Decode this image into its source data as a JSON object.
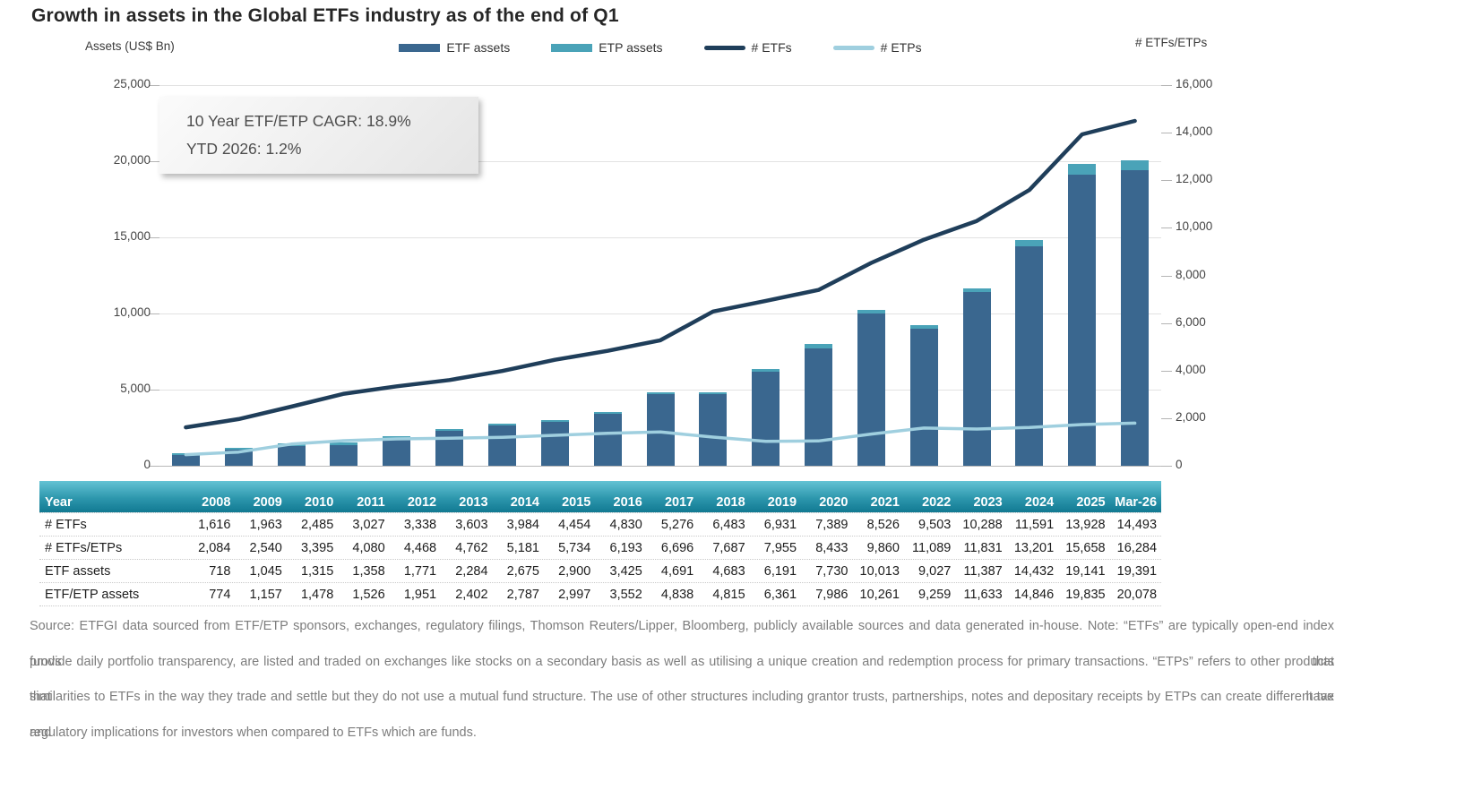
{
  "page": {
    "title": "Growth in assets in the Global ETFs industry as of the end of Q1"
  },
  "chart": {
    "left_axis_label": "Assets (US$ Bn)",
    "right_axis_label": "# ETFs/ETPs",
    "annotation": {
      "line1": "10 Year ETF/ETP CAGR: 18.9%",
      "line2": "YTD 2026: 1.2%"
    },
    "legend": [
      {
        "label": "ETF assets",
        "type": "bar",
        "color": "#3a678f"
      },
      {
        "label": "ETP assets",
        "type": "bar",
        "color": "#4aa3b8"
      },
      {
        "label": "# ETFs",
        "type": "line",
        "color": "#1f3e5a"
      },
      {
        "label": "# ETPs",
        "type": "line",
        "color": "#9fcfdf"
      }
    ],
    "left_ticks": [
      "25,000",
      "20,000",
      "15,000",
      "10,000",
      "5,000",
      "0"
    ],
    "right_ticks": [
      "16,000",
      "14,000",
      "12,000",
      "10,000",
      "8,000",
      "6,000",
      "4,000",
      "2,000",
      "0"
    ]
  },
  "chart_data": {
    "type": "combo_stacked_bar_line",
    "title": "Growth in assets in the Global ETFs industry as of the end of Q1",
    "categories": [
      "2008",
      "2009",
      "2010",
      "2011",
      "2012",
      "2013",
      "2014",
      "2015",
      "2016",
      "2017",
      "2018",
      "2019",
      "2020",
      "2021",
      "2022",
      "2023",
      "2024",
      "2025",
      "Mar-26"
    ],
    "series": [
      {
        "name": "ETF assets",
        "type": "bar",
        "stack": "assets",
        "axis": "left",
        "color": "#3a678f",
        "values": [
          718,
          1045,
          1315,
          1358,
          1771,
          2284,
          2675,
          2900,
          3425,
          4691,
          4683,
          6191,
          7730,
          10013,
          9027,
          11387,
          14432,
          19141,
          19391
        ]
      },
      {
        "name": "ETP assets",
        "type": "bar",
        "stack": "assets",
        "axis": "left",
        "color": "#4aa3b8",
        "note": "stacked segment = ETF/ETP assets minus ETF assets; stack total equals ETF/ETP assets row",
        "values": [
          56,
          112,
          163,
          168,
          180,
          118,
          112,
          97,
          127,
          147,
          132,
          170,
          256,
          248,
          232,
          246,
          414,
          694,
          687
        ]
      },
      {
        "name": "# ETFs",
        "type": "line",
        "axis": "right",
        "color": "#1f3e5a",
        "values": [
          1616,
          1963,
          2485,
          3027,
          3338,
          3603,
          3984,
          4454,
          4830,
          5276,
          6483,
          6931,
          7389,
          8526,
          9503,
          10288,
          11591,
          13928,
          14493
        ]
      },
      {
        "name": "# ETPs",
        "type": "line",
        "axis": "right",
        "color": "#9fcfdf",
        "note": "= # ETFs/ETPs minus # ETFs",
        "values": [
          468,
          577,
          910,
          1053,
          1130,
          1159,
          1197,
          1280,
          1363,
          1420,
          1204,
          1024,
          1044,
          1334,
          1586,
          1543,
          1610,
          1730,
          1791
        ]
      }
    ],
    "left_axis": {
      "label": "Assets (US$ Bn)",
      "range": [
        0,
        25000
      ],
      "tick_step": 5000
    },
    "right_axis": {
      "label": "# ETFs/ETPs",
      "range": [
        0,
        16000
      ],
      "tick_step": 2000
    },
    "grid": "horizontal",
    "legend_position": "top"
  },
  "table": {
    "header": [
      "Year",
      "2008",
      "2009",
      "2010",
      "2011",
      "2012",
      "2013",
      "2014",
      "2015",
      "2016",
      "2017",
      "2018",
      "2019",
      "2020",
      "2021",
      "2022",
      "2023",
      "2024",
      "2025",
      "Mar-26"
    ],
    "rows": [
      {
        "label": "# ETFs",
        "values": [
          "1,616",
          "1,963",
          "2,485",
          "3,027",
          "3,338",
          "3,603",
          "3,984",
          "4,454",
          "4,830",
          "5,276",
          "6,483",
          "6,931",
          "7,389",
          "8,526",
          "9,503",
          "10,288",
          "11,591",
          "13,928",
          "14,493"
        ]
      },
      {
        "label": "# ETFs/ETPs",
        "values": [
          "2,084",
          "2,540",
          "3,395",
          "4,080",
          "4,468",
          "4,762",
          "5,181",
          "5,734",
          "6,193",
          "6,696",
          "7,687",
          "7,955",
          "8,433",
          "9,860",
          "11,089",
          "11,831",
          "13,201",
          "15,658",
          "16,284"
        ]
      },
      {
        "label": "ETF assets",
        "values": [
          "718",
          "1,045",
          "1,315",
          "1,358",
          "1,771",
          "2,284",
          "2,675",
          "2,900",
          "3,425",
          "4,691",
          "4,683",
          "6,191",
          "7,730",
          "10,013",
          "9,027",
          "11,387",
          "14,432",
          "19,141",
          "19,391"
        ]
      },
      {
        "label": "ETF/ETP assets",
        "values": [
          "774",
          "1,157",
          "1,478",
          "1,526",
          "1,951",
          "2,402",
          "2,787",
          "2,997",
          "3,552",
          "4,838",
          "4,815",
          "6,361",
          "7,986",
          "10,261",
          "9,259",
          "11,633",
          "14,846",
          "19,835",
          "20,078"
        ]
      }
    ]
  },
  "footer": {
    "lines": [
      "Source: ETFGI data sourced from ETF/ETP sponsors, exchanges, regulatory filings, Thomson Reuters/Lipper, Bloomberg, publicly available sources and data generated in-house. Note: “ETFs” are typically open-end index funds that",
      "provide daily portfolio transparency, are listed and traded on exchanges like stocks on a secondary basis as well as utilising a unique creation and redemption process for primary transactions. “ETPs” refers to other products that have",
      "similarities to ETFs in the way they trade and settle but they do not use a mutual fund structure. The use of other structures including grantor trusts, partnerships, notes and depositary receipts by ETPs can create different tax and",
      "regulatory implications for investors when compared to ETFs which are funds."
    ]
  }
}
